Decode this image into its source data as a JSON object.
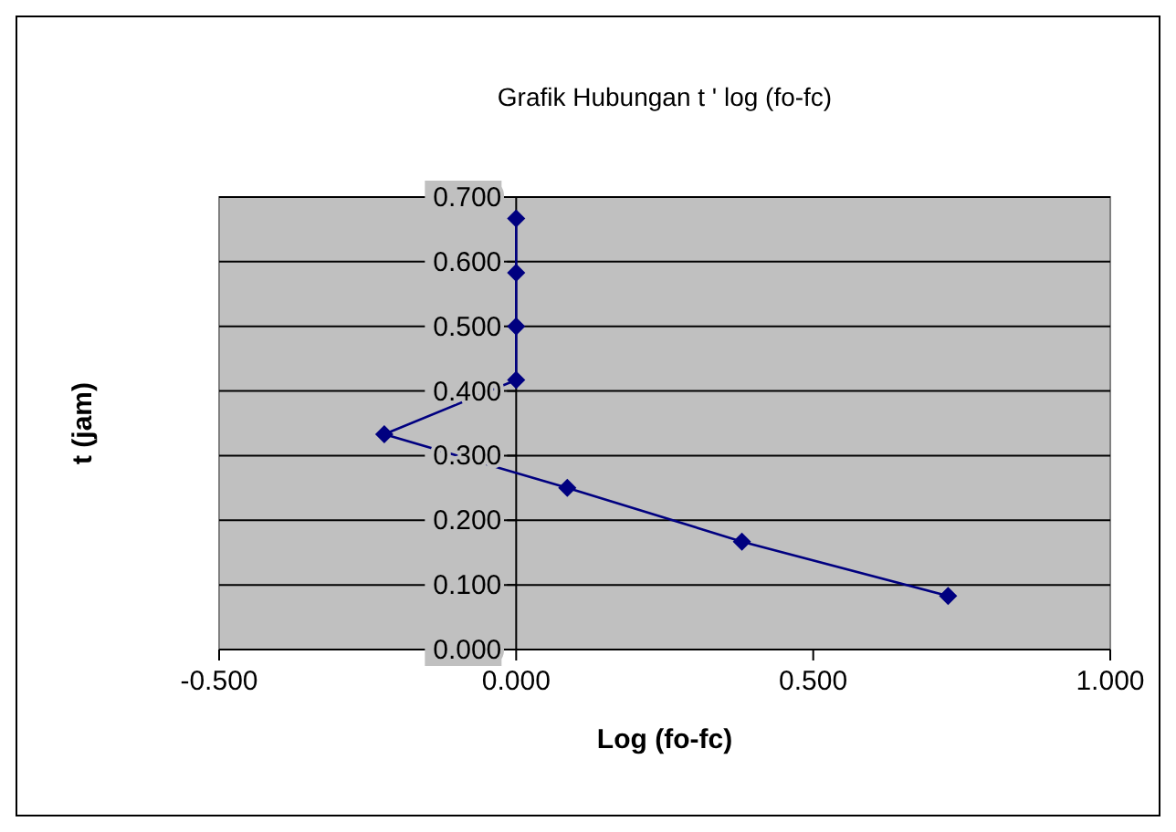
{
  "chart_data": {
    "type": "line",
    "title": "Grafik Hubungan t ' log (fo-fc)",
    "xlabel": "Log (fo-fc)",
    "ylabel": "t (jam)",
    "x": [
      0.727,
      0.38,
      0.086,
      -0.222,
      0.0,
      0.0,
      0.0,
      0.0
    ],
    "series": [
      {
        "color": "#000080",
        "values": [
          0.083,
          0.167,
          0.25,
          0.333,
          0.417,
          0.5,
          0.583,
          0.667
        ]
      }
    ],
    "xlim": [
      -0.5,
      1
    ],
    "xticks": [
      {
        "value": -0.5,
        "label": "-0.500"
      },
      {
        "value": 0,
        "label": "0.000"
      },
      {
        "value": 0.5,
        "label": "0.500"
      },
      {
        "value": 1,
        "label": "1.000"
      }
    ],
    "ylim": [
      0,
      0.7
    ],
    "yticks": [
      {
        "value": 0,
        "label": "0.000"
      },
      {
        "value": 0.1,
        "label": "0.100"
      },
      {
        "value": 0.2,
        "label": "0.200"
      },
      {
        "value": 0.3,
        "label": "0.300"
      },
      {
        "value": 0.4,
        "label": "0.400"
      },
      {
        "value": 0.5,
        "label": "0.500"
      },
      {
        "value": 0.6,
        "label": "0.600"
      },
      {
        "value": 0.7,
        "label": "0.700"
      }
    ],
    "grid": "y",
    "marker": "diamond",
    "line_style": "solid"
  }
}
